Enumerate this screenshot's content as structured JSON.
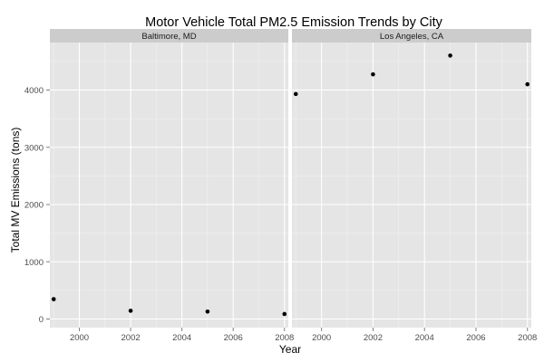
{
  "chart_data": {
    "type": "scatter",
    "title": "Motor Vehicle Total PM2.5 Emission Trends by City",
    "xlabel": "Year",
    "ylabel": "Total MV Emissions (tons)",
    "xlim": [
      1998.85,
      2008.15
    ],
    "ylim": [
      -150,
      4830
    ],
    "x_ticks": [
      2000,
      2002,
      2004,
      2006,
      2008
    ],
    "y_ticks": [
      0,
      1000,
      2000,
      3000,
      4000
    ],
    "grid": true,
    "panels": [
      {
        "name": "Baltimore, MD",
        "points": [
          {
            "x": 1999,
            "y": 347
          },
          {
            "x": 2002,
            "y": 144
          },
          {
            "x": 2005,
            "y": 130
          },
          {
            "x": 2008,
            "y": 88
          }
        ]
      },
      {
        "name": "Los Angeles, CA",
        "points": [
          {
            "x": 1999,
            "y": 3931
          },
          {
            "x": 2002,
            "y": 4274
          },
          {
            "x": 2005,
            "y": 4602
          },
          {
            "x": 2008,
            "y": 4101
          }
        ]
      }
    ]
  },
  "colors": {
    "panel_background": "#e5e5e5",
    "grid_major": "#ffffff",
    "grid_minor": "#f2f2f2",
    "strip_background": "#cccccc",
    "point": "#000000"
  }
}
